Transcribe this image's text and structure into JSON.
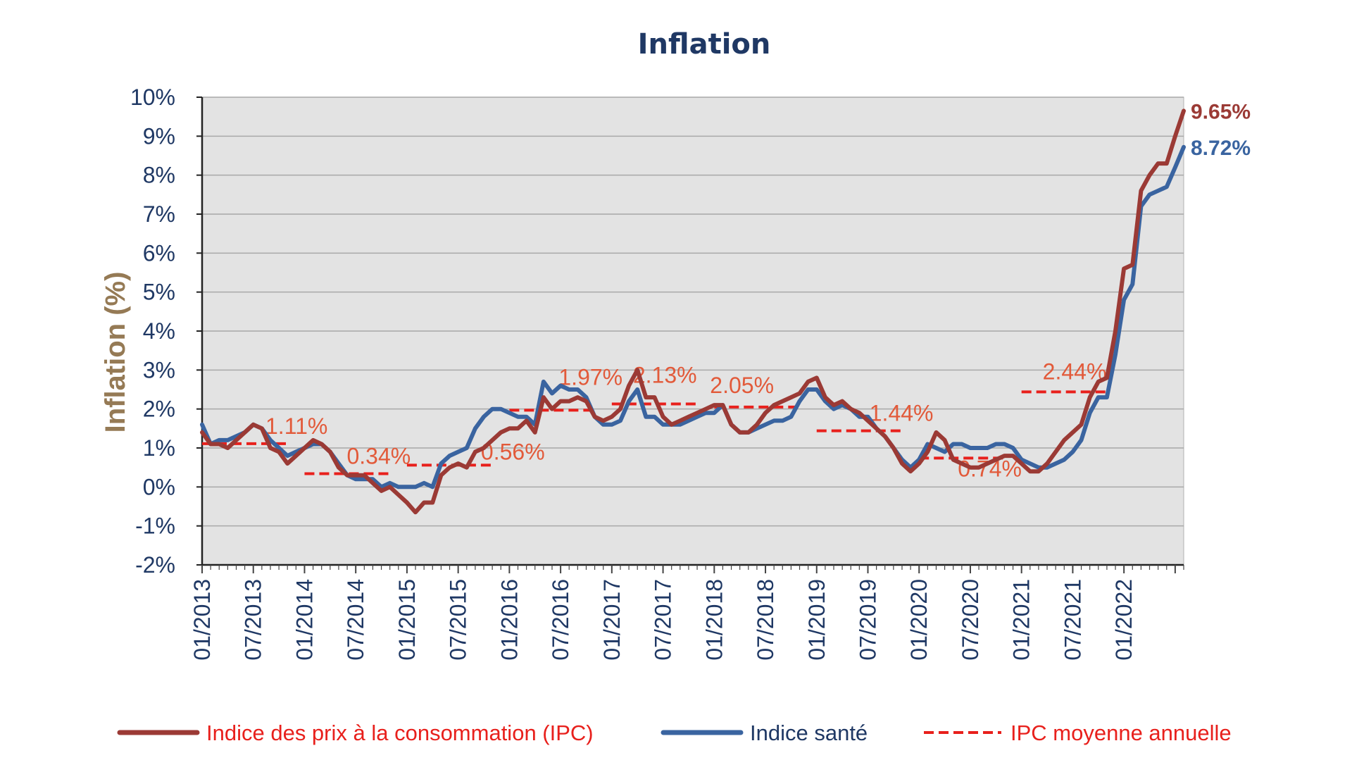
{
  "chart_data": {
    "type": "line",
    "title": "Inflation",
    "xlabel": "",
    "ylabel": "Inflation (%)",
    "ylim": [
      -2,
      10
    ],
    "y_ticks": [
      "-2%",
      "-1%",
      "0%",
      "1%",
      "2%",
      "3%",
      "4%",
      "5%",
      "6%",
      "7%",
      "8%",
      "9%",
      "10%"
    ],
    "y_tick_values": [
      -2,
      -1,
      0,
      1,
      2,
      3,
      4,
      5,
      6,
      7,
      8,
      9,
      10
    ],
    "x_start": "01/2013",
    "x_end": "11/2022",
    "x_tick_labels": [
      "01/2013",
      "07/2013",
      "01/2014",
      "07/2014",
      "01/2015",
      "07/2015",
      "01/2016",
      "07/2016",
      "01/2017",
      "07/2017",
      "01/2018",
      "07/2018",
      "01/2019",
      "07/2019",
      "01/2020",
      "07/2020",
      "01/2021",
      "07/2021",
      "01/2022"
    ],
    "grid": true,
    "legend_position": "bottom",
    "colors": {
      "ipc": "#9b3a35",
      "sante": "#3a64a0",
      "avg": "#e8201c",
      "annotation": "#e25a3a",
      "plot_bg": "#e3e3e3",
      "title": "#1f3864",
      "axis_text": "#1f3864",
      "ylabel": "#957a55"
    },
    "series": [
      {
        "name": "Indice des prix à la consommation (IPC)",
        "key": "ipc",
        "values": [
          1.4,
          1.1,
          1.1,
          1.0,
          1.2,
          1.4,
          1.6,
          1.5,
          1.0,
          0.9,
          0.6,
          0.8,
          1.0,
          1.2,
          1.1,
          0.9,
          0.5,
          0.3,
          0.3,
          0.3,
          0.1,
          -0.1,
          0.0,
          -0.2,
          -0.4,
          -0.65,
          -0.4,
          -0.4,
          0.3,
          0.5,
          0.6,
          0.5,
          0.9,
          1.0,
          1.2,
          1.4,
          1.5,
          1.5,
          1.7,
          1.4,
          2.3,
          2.0,
          2.2,
          2.2,
          2.3,
          2.2,
          1.8,
          1.7,
          1.8,
          2.0,
          2.6,
          3.0,
          2.3,
          2.3,
          1.8,
          1.6,
          1.7,
          1.8,
          1.9,
          2.0,
          2.1,
          2.1,
          1.6,
          1.4,
          1.4,
          1.6,
          1.9,
          2.1,
          2.2,
          2.3,
          2.4,
          2.7,
          2.8,
          2.3,
          2.1,
          2.2,
          2.0,
          1.9,
          1.7,
          1.5,
          1.3,
          1.0,
          0.6,
          0.4,
          0.6,
          0.9,
          1.4,
          1.2,
          0.7,
          0.6,
          0.5,
          0.5,
          0.6,
          0.7,
          0.8,
          0.8,
          0.6,
          0.4,
          0.4,
          0.6,
          0.9,
          1.2,
          1.4,
          1.6,
          2.3,
          2.7,
          2.8,
          4.0,
          5.6,
          5.7,
          7.6,
          8.0,
          8.3,
          8.3,
          9.0,
          9.65
        ],
        "end_label": "9.65%"
      },
      {
        "name": "Indice santé",
        "key": "sante",
        "values": [
          1.6,
          1.1,
          1.2,
          1.2,
          1.3,
          1.4,
          1.6,
          1.5,
          1.2,
          1.0,
          0.8,
          0.9,
          1.0,
          1.1,
          1.1,
          0.9,
          0.6,
          0.3,
          0.2,
          0.2,
          0.2,
          0.0,
          0.1,
          0.0,
          0.0,
          0.0,
          0.1,
          0.0,
          0.6,
          0.8,
          0.9,
          1.0,
          1.5,
          1.8,
          2.0,
          2.0,
          1.9,
          1.8,
          1.8,
          1.6,
          2.7,
          2.4,
          2.6,
          2.5,
          2.5,
          2.3,
          1.8,
          1.6,
          1.6,
          1.7,
          2.2,
          2.5,
          1.8,
          1.8,
          1.6,
          1.6,
          1.6,
          1.7,
          1.8,
          1.9,
          1.9,
          2.1,
          1.6,
          1.4,
          1.4,
          1.5,
          1.6,
          1.7,
          1.7,
          1.8,
          2.2,
          2.5,
          2.5,
          2.2,
          2.0,
          2.1,
          2.0,
          1.8,
          1.8,
          1.5,
          1.3,
          1.0,
          0.7,
          0.5,
          0.7,
          1.1,
          1.0,
          0.9,
          1.1,
          1.1,
          1.0,
          1.0,
          1.0,
          1.1,
          1.1,
          1.0,
          0.7,
          0.6,
          0.5,
          0.5,
          0.6,
          0.7,
          0.9,
          1.2,
          1.9,
          2.3,
          2.3,
          3.4,
          4.8,
          5.2,
          7.2,
          7.5,
          7.6,
          7.7,
          8.2,
          8.72
        ],
        "end_label": "8.72%"
      },
      {
        "name": "IPC moyenne annuelle",
        "key": "avg",
        "dashed": true,
        "segments": [
          {
            "year": 2013,
            "value": 1.11,
            "label": "1.11%"
          },
          {
            "year": 2014,
            "value": 0.34,
            "label": "0.34%"
          },
          {
            "year": 2015,
            "value": 0.56,
            "label": "0.56%"
          },
          {
            "year": 2016,
            "value": 1.97,
            "label": "1.97%"
          },
          {
            "year": 2017,
            "value": 2.13,
            "label": "2.13%"
          },
          {
            "year": 2018,
            "value": 2.05,
            "label": "2.05%"
          },
          {
            "year": 2019,
            "value": 1.44,
            "label": "1.44%"
          },
          {
            "year": 2020,
            "value": 0.74,
            "label": "0.74%"
          },
          {
            "year": 2021,
            "value": 2.44,
            "label": "2.44%"
          }
        ]
      }
    ]
  }
}
